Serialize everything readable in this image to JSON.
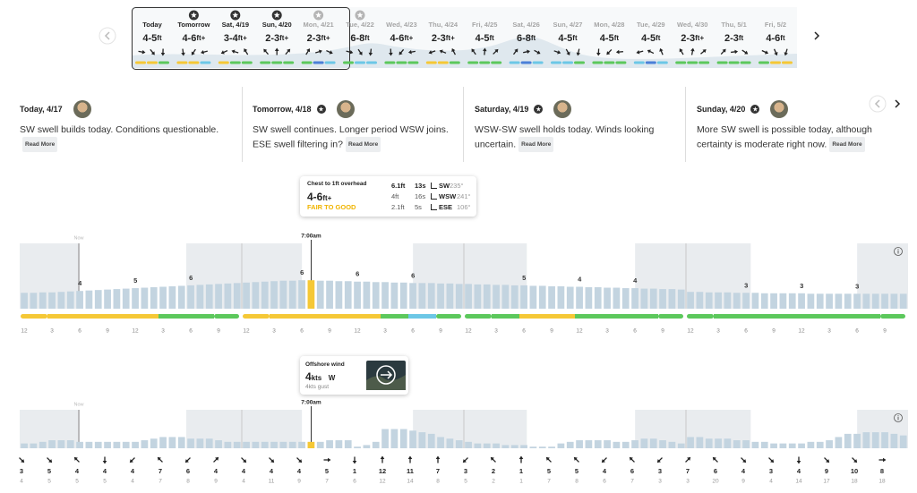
{
  "nav": {
    "days": [
      {
        "label": "Today",
        "height": "4-5",
        "unit": "ft",
        "star": null,
        "ratings": [
          "#f5c836",
          "#f5c836",
          "#5cc85c"
        ]
      },
      {
        "label": "Tomorrow",
        "height": "4-6",
        "unit": "ft+",
        "star": "#333333",
        "ratings": [
          "#f5c836",
          "#f5c836",
          "#6cc7e6"
        ]
      },
      {
        "label": "Sat, 4/19",
        "height": "3-4",
        "unit": "ft+",
        "star": "#333333",
        "ratings": [
          "#f5c836",
          "#5cc85c",
          "#5cc85c"
        ]
      },
      {
        "label": "Sun, 4/20",
        "height": "2-3",
        "unit": "ft+",
        "star": "#333333",
        "ratings": [
          "#5cc85c",
          "#5cc85c",
          "#5cc85c"
        ]
      },
      {
        "label": "Mon, 4/21",
        "height": "2-3",
        "unit": "ft+",
        "star": "#b5b5b5",
        "ratings": [
          "#5cc85c",
          "#4a7fd8",
          "#6cc7e6"
        ]
      },
      {
        "label": "Tue, 4/22",
        "height": "6-8",
        "unit": "ft",
        "star": "#b5b5b5",
        "ratings": [
          "#5cc85c",
          "#6cc7e6",
          "#6cc7e6"
        ]
      },
      {
        "label": "Wed, 4/23",
        "height": "4-6",
        "unit": "ft+",
        "star": null,
        "ratings": [
          "#5cc85c",
          "#5cc85c",
          "#5cc85c"
        ]
      },
      {
        "label": "Thu, 4/24",
        "height": "2-3",
        "unit": "ft+",
        "star": null,
        "ratings": [
          "#f5c836",
          "#f5c836",
          "#5cc85c"
        ]
      },
      {
        "label": "Fri, 4/25",
        "height": "4-5",
        "unit": "ft",
        "star": null,
        "ratings": [
          "#5cc85c",
          "#5cc85c",
          "#5cc85c"
        ]
      },
      {
        "label": "Sat, 4/26",
        "height": "6-8",
        "unit": "ft",
        "star": null,
        "ratings": [
          "#6cc7e6",
          "#4a7fd8",
          "#6cc7e6"
        ]
      },
      {
        "label": "Sun, 4/27",
        "height": "4-5",
        "unit": "ft",
        "star": null,
        "ratings": [
          "#6cc7e6",
          "#6cc7e6",
          "#5cc85c"
        ]
      },
      {
        "label": "Mon, 4/28",
        "height": "4-5",
        "unit": "ft",
        "star": null,
        "ratings": [
          "#5cc85c",
          "#5cc85c",
          "#5cc85c"
        ]
      },
      {
        "label": "Tue, 4/29",
        "height": "4-5",
        "unit": "ft",
        "star": null,
        "ratings": [
          "#6cc7e6",
          "#4a7fd8",
          "#6cc7e6"
        ]
      },
      {
        "label": "Wed, 4/30",
        "height": "2-3",
        "unit": "ft+",
        "star": null,
        "ratings": [
          "#5cc85c",
          "#5cc85c",
          "#5cc85c"
        ]
      },
      {
        "label": "Thu, 5/1",
        "height": "2-3",
        "unit": "ft",
        "star": null,
        "ratings": [
          "#5cc85c",
          "#5cc85c",
          "#5cc85c"
        ]
      },
      {
        "label": "Fri, 5/2",
        "height": "4-6",
        "unit": "ft",
        "star": null,
        "ratings": [
          "#5cc85c",
          "#f5c836",
          "#f5c836"
        ]
      }
    ]
  },
  "reports": {
    "read_more": "Read More",
    "items": [
      {
        "title": "Today, 4/17",
        "star": false,
        "text": "SW swell builds today. Conditions questionable."
      },
      {
        "title": "Tomorrow, 4/18",
        "star": true,
        "text": "SW swell continues. Longer period WSW joins. ESE swell filtering in?"
      },
      {
        "title": "Saturday, 4/19",
        "star": true,
        "text": "WSW-SW swell holds today. Winds looking uncertain."
      },
      {
        "title": "Sunday, 4/20",
        "star": true,
        "text": "More SW swell is possible today, although certainty is moderate right now."
      }
    ]
  },
  "surf_tooltip": {
    "caption": "Chest to 1ft overhead",
    "height": "4-6",
    "unit": "ft+",
    "rating": "FAIR TO GOOD",
    "rating_color": "#f0b400",
    "swells": [
      {
        "height": "6.1ft",
        "period": "13s",
        "direction": "SW",
        "degrees": "235°"
      },
      {
        "height": "4ft",
        "period": "16s",
        "direction": "WSW",
        "degrees": "241°"
      },
      {
        "height": "2.1ft",
        "period": "5s",
        "direction": "ESE",
        "degrees": "106°"
      }
    ]
  },
  "wind_tooltip": {
    "caption": "Offshore wind",
    "speed": "4",
    "unit": "kts",
    "direction": "W",
    "gust": "4kts gust"
  },
  "now_label": "Now",
  "selected_time": "7:00am",
  "surf": {
    "ylim": [
      0,
      14
    ],
    "color": "#c3d4e0",
    "selected_color": "#f5c836",
    "values": [
      3.4,
      3.4,
      3.5,
      3.5,
      3.6,
      3.7,
      3.8,
      3.9,
      4.0,
      4.1,
      4.2,
      4.3,
      4.4,
      4.5,
      4.6,
      4.7,
      4.8,
      4.9,
      5.0,
      5.1,
      5.2,
      5.3,
      5.4,
      5.5,
      5.6,
      5.7,
      5.8,
      5.9,
      6.0,
      6.0,
      6.1,
      6.1,
      6.0,
      6.0,
      5.9,
      5.9,
      5.8,
      5.8,
      5.7,
      5.7,
      5.6,
      5.6,
      5.5,
      5.5,
      5.5,
      5.4,
      5.4,
      5.3,
      5.3,
      5.2,
      5.2,
      5.1,
      5.1,
      5.0,
      5.0,
      4.9,
      4.9,
      4.8,
      4.8,
      4.7,
      4.7,
      4.6,
      4.6,
      4.5,
      4.5,
      4.4,
      4.4,
      4.3,
      4.3,
      4.2,
      4.2,
      4.1,
      3.6,
      3.6,
      3.5,
      3.5,
      3.5,
      3.4,
      3.4,
      3.4,
      3.3,
      3.3,
      3.3,
      3.3,
      3.3,
      3.2,
      3.2,
      3.2,
      3.2,
      3.2,
      3.2,
      3.2,
      3.2,
      3.2,
      3.2,
      3.2
    ],
    "peak_labels": [
      "4",
      "5",
      "6",
      "6",
      "6",
      "6",
      "5",
      "4",
      "4",
      "3",
      "3",
      "3"
    ],
    "conditions": [
      "#f5c836",
      "#f5c836",
      "#f5c836",
      "#f5c836",
      "#f5c836",
      "#5cc85c",
      "#5cc85c",
      "#5cc85c",
      "#f5c836",
      "#f5c836",
      "#f5c836",
      "#f5c836",
      "#f5c836",
      "#5cc85c",
      "#6cc7e6",
      "#5cc85c",
      "#5cc85c",
      "#5cc85c",
      "#f5c836",
      "#f5c836",
      "#5cc85c",
      "#5cc85c",
      "#5cc85c",
      "#5cc85c",
      "#5cc85c",
      "#5cc85c",
      "#5cc85c",
      "#5cc85c",
      "#5cc85c",
      "#5cc85c",
      "#5cc85c",
      "#5cc85c"
    ],
    "hour_labels": [
      "12",
      "3",
      "6",
      "9",
      "12",
      "3",
      "6",
      "9"
    ]
  },
  "wind": {
    "ylim": [
      0,
      24
    ],
    "color": "#c3d4e0",
    "selected_color": "#f5c836",
    "values": [
      3,
      3,
      4,
      5,
      5,
      5,
      4,
      4,
      4,
      4,
      4,
      4,
      4,
      5,
      6,
      7,
      7,
      7,
      6,
      6,
      6,
      5,
      4,
      4,
      4,
      4,
      4,
      4,
      4,
      4,
      4,
      4,
      4,
      5,
      5,
      5,
      1,
      2,
      4,
      12,
      12,
      12,
      11,
      10,
      9,
      7,
      6,
      5,
      4,
      3,
      3,
      3,
      2,
      2,
      2,
      1,
      1,
      1,
      3,
      4,
      5,
      5,
      5,
      5,
      4,
      4,
      5,
      6,
      6,
      5,
      4,
      3,
      7,
      7,
      6,
      6,
      6,
      5,
      5,
      4,
      4,
      3,
      3,
      3,
      3,
      4,
      4,
      5,
      7,
      9,
      9,
      10,
      10,
      10,
      9,
      8
    ],
    "speeds": [
      3,
      5,
      4,
      4,
      4,
      7,
      6,
      4,
      4,
      4,
      4,
      5,
      1,
      12,
      11,
      7,
      3,
      2,
      1,
      5,
      5,
      4,
      6,
      3,
      7,
      6,
      4,
      3,
      4,
      9,
      10,
      8
    ],
    "gusts": [
      4,
      5,
      5,
      5,
      4,
      7,
      8,
      9,
      4,
      11,
      9,
      7,
      6,
      12,
      14,
      8,
      5,
      2,
      1,
      7,
      8,
      6,
      7,
      3,
      3,
      20,
      9,
      4,
      14,
      17,
      18,
      18
    ],
    "directions": [
      135,
      135,
      315,
      180,
      225,
      315,
      225,
      45,
      135,
      135,
      135,
      90,
      180,
      0,
      0,
      0,
      225,
      315,
      0,
      315,
      315,
      225,
      315,
      225,
      45,
      315,
      135,
      135,
      180,
      135,
      135,
      90
    ]
  }
}
